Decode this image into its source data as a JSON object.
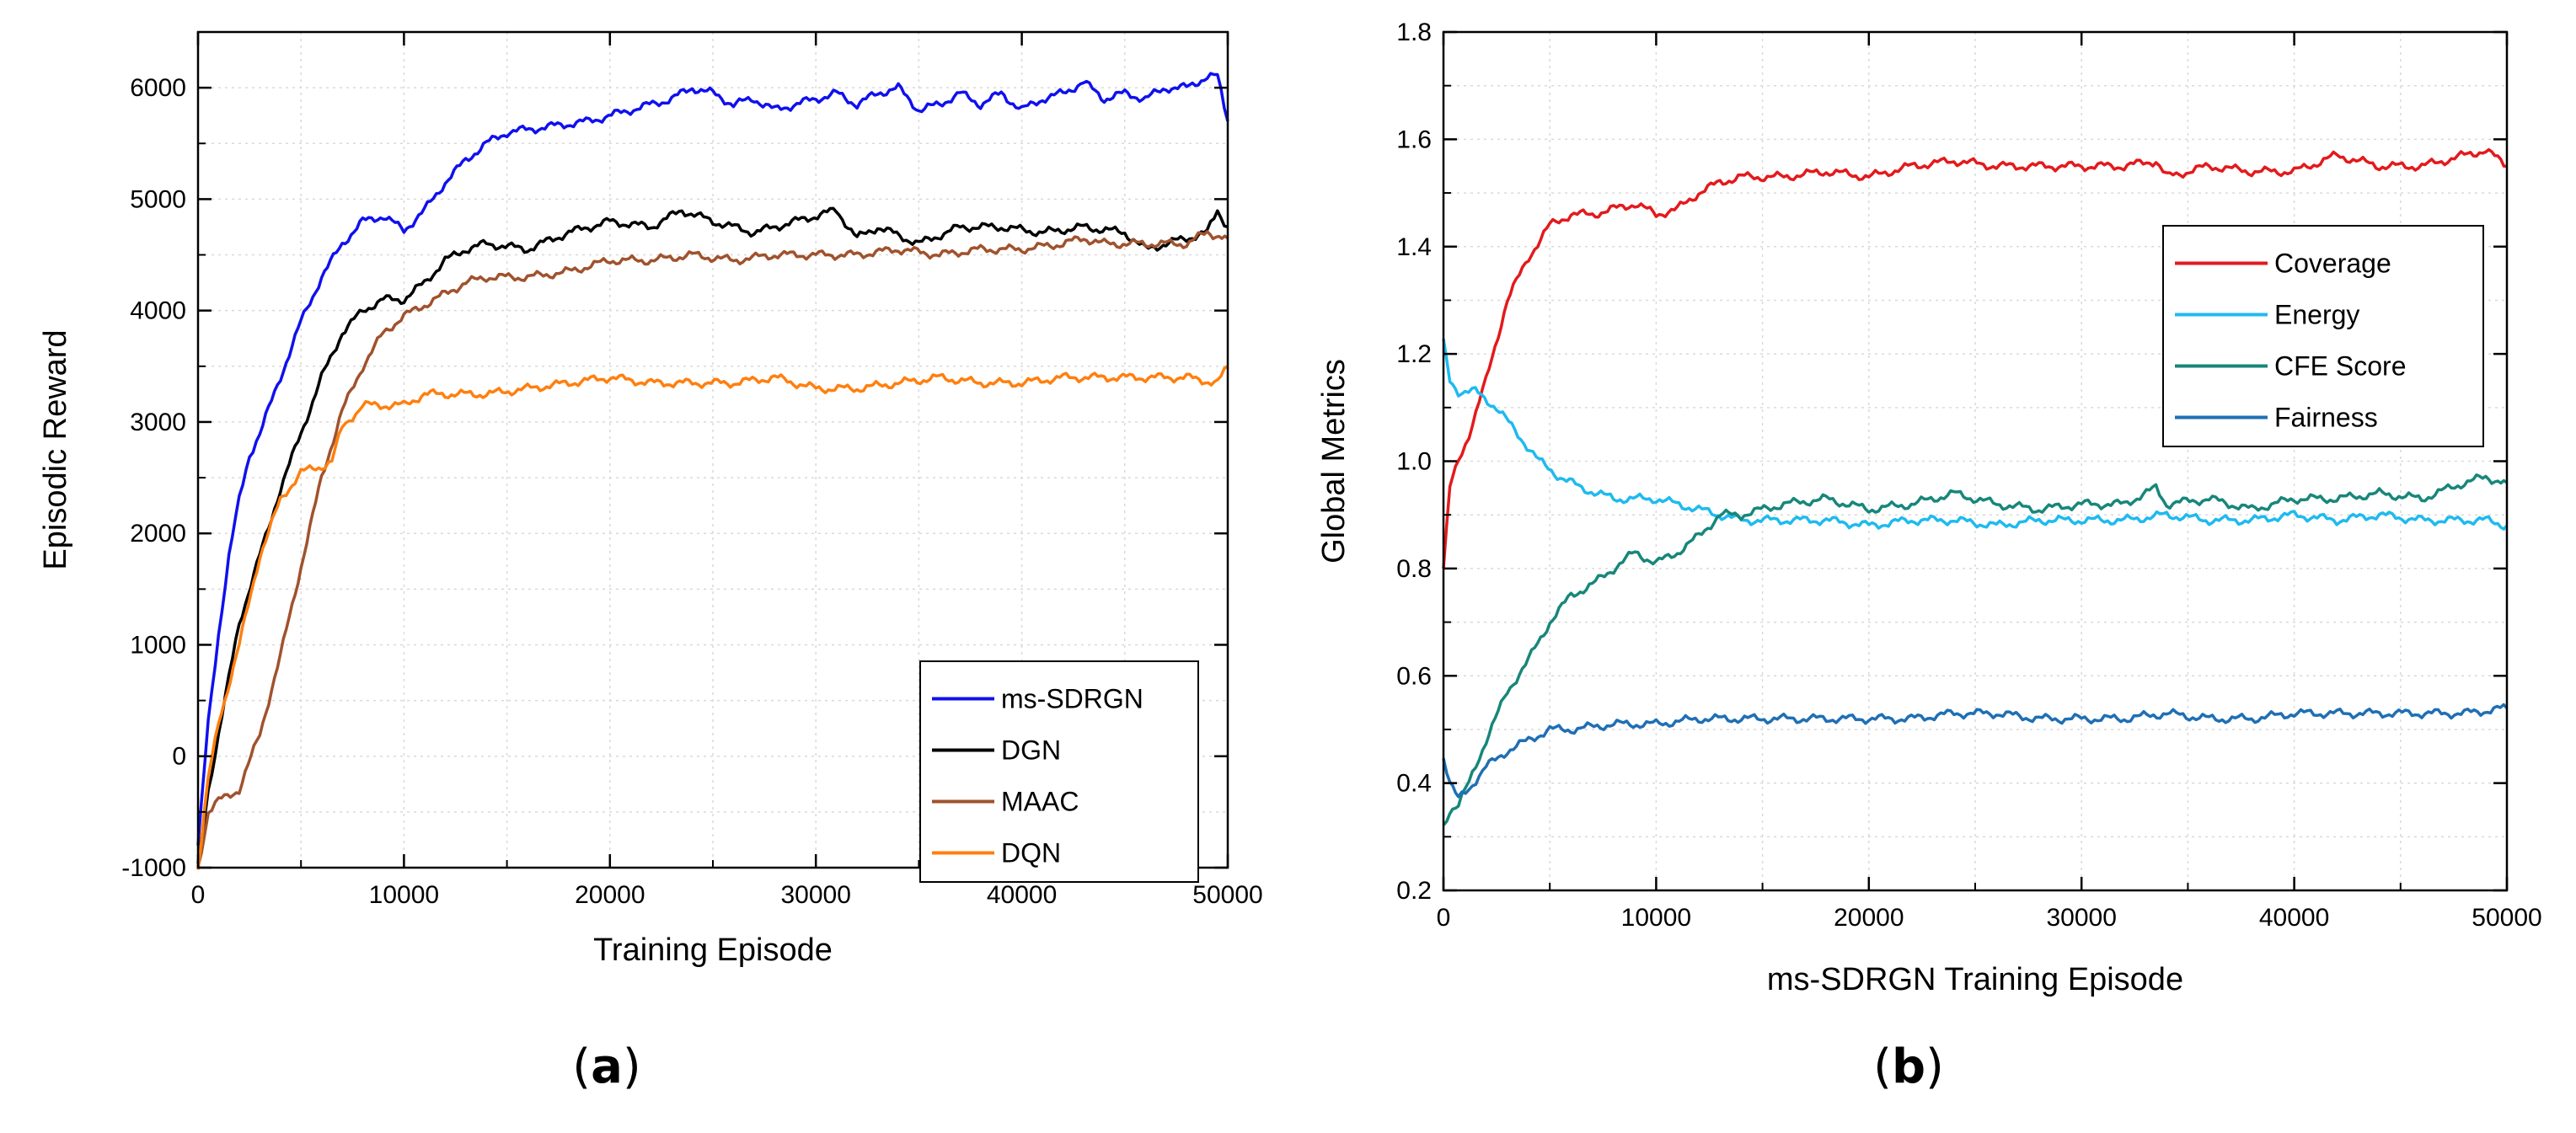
{
  "chart_data": [
    {
      "id": "a",
      "type": "line",
      "panel_label_open": "(",
      "panel_label_letter": "a",
      "panel_label_close": ")",
      "xlabel": "Training Episode",
      "ylabel": "Episodic Reward",
      "xlim": [
        0,
        50000
      ],
      "ylim": [
        -1000,
        6500
      ],
      "xticks": [
        0,
        10000,
        20000,
        30000,
        40000,
        50000
      ],
      "yticks": [
        -1000,
        0,
        1000,
        2000,
        3000,
        4000,
        5000,
        6000
      ],
      "grid": true,
      "legend_position": "bottom-right",
      "series": [
        {
          "name": "ms-SDRGN",
          "color": "#1010ee",
          "x": [
            0,
            500,
            1000,
            1500,
            2000,
            2500,
            3000,
            4000,
            5000,
            6000,
            7000,
            8000,
            9000,
            10000,
            11000,
            12000,
            13000,
            14000,
            15000,
            17000,
            19000,
            21000,
            23000,
            24000,
            25000,
            26000,
            27000,
            28000,
            30000,
            31000,
            32000,
            33000,
            34000,
            35000,
            36000,
            37000,
            38000,
            39000,
            40000,
            41000,
            42000,
            43000,
            44000,
            45000,
            46000,
            47000,
            48000,
            49000,
            49500,
            50000
          ],
          "y": [
            -800,
            300,
            1100,
            1800,
            2300,
            2700,
            2900,
            3400,
            3900,
            4300,
            4600,
            4800,
            4850,
            4720,
            4900,
            5150,
            5350,
            5500,
            5600,
            5650,
            5700,
            5800,
            5900,
            6000,
            5950,
            5850,
            5900,
            5800,
            5900,
            5950,
            5850,
            5950,
            6000,
            5800,
            5850,
            5950,
            5850,
            5950,
            5800,
            5900,
            5950,
            6050,
            5900,
            5950,
            5900,
            6000,
            6000,
            6100,
            6100,
            5700
          ]
        },
        {
          "name": "DGN",
          "color": "#000000",
          "x": [
            0,
            500,
            1000,
            1500,
            2000,
            3000,
            4000,
            5000,
            6000,
            7000,
            8000,
            9000,
            10000,
            11000,
            12000,
            13000,
            14000,
            16000,
            18000,
            20000,
            22000,
            23500,
            25000,
            27000,
            29000,
            31000,
            32000,
            33000,
            35000,
            37000,
            39000,
            41000,
            43000,
            45000,
            46000,
            47000,
            48000,
            49000,
            49500,
            50000
          ],
          "y": [
            -1000,
            -300,
            200,
            700,
            1200,
            1800,
            2400,
            2900,
            3400,
            3800,
            4000,
            4100,
            4100,
            4250,
            4450,
            4550,
            4600,
            4550,
            4700,
            4800,
            4750,
            4900,
            4800,
            4700,
            4800,
            4900,
            4650,
            4750,
            4600,
            4750,
            4750,
            4700,
            4750,
            4700,
            4550,
            4600,
            4650,
            4700,
            4900,
            4750
          ]
        },
        {
          "name": "MAAC",
          "color": "#a0522d",
          "x": [
            0,
            500,
            1000,
            2000,
            3000,
            4000,
            5000,
            6000,
            7000,
            8000,
            9000,
            10000,
            11000,
            12000,
            13000,
            14000,
            16000,
            18000,
            20000,
            22000,
            24000,
            26000,
            28000,
            30000,
            32000,
            34000,
            36000,
            38000,
            40000,
            42000,
            43000,
            44000,
            46000,
            48000,
            49000,
            50000
          ],
          "y": [
            -1000,
            -500,
            -400,
            -300,
            200,
            900,
            1700,
            2500,
            3100,
            3500,
            3800,
            3950,
            4050,
            4150,
            4250,
            4300,
            4300,
            4350,
            4450,
            4450,
            4500,
            4450,
            4500,
            4500,
            4500,
            4550,
            4500,
            4550,
            4550,
            4600,
            4650,
            4600,
            4600,
            4600,
            4700,
            4650
          ]
        },
        {
          "name": "DQN",
          "color": "#ff7f0e",
          "x": [
            0,
            500,
            1000,
            2000,
            3000,
            4000,
            5000,
            6000,
            6500,
            7000,
            7500,
            8000,
            9000,
            10000,
            11000,
            12000,
            14000,
            16000,
            18000,
            20000,
            22000,
            24000,
            26000,
            28000,
            30000,
            32000,
            34000,
            36000,
            38000,
            40000,
            42000,
            44000,
            46000,
            48000,
            49500,
            50000
          ],
          "y": [
            -1000,
            -200,
            300,
            1000,
            1800,
            2300,
            2550,
            2600,
            2650,
            2950,
            3050,
            3150,
            3150,
            3150,
            3250,
            3250,
            3250,
            3300,
            3350,
            3400,
            3350,
            3350,
            3350,
            3400,
            3300,
            3300,
            3350,
            3400,
            3350,
            3350,
            3400,
            3400,
            3400,
            3400,
            3350,
            3500
          ]
        }
      ]
    },
    {
      "id": "b",
      "type": "line",
      "panel_label_open": "(",
      "panel_label_letter": "b",
      "panel_label_close": ")",
      "xlabel": "ms-SDRGN Training Episode",
      "ylabel": "Global Metrics",
      "xlim": [
        0,
        50000
      ],
      "ylim": [
        0.2,
        1.8
      ],
      "xticks": [
        0,
        10000,
        20000,
        30000,
        40000,
        50000
      ],
      "yticks": [
        0.2,
        0.4,
        0.6,
        0.8,
        1.0,
        1.2,
        1.4,
        1.6,
        1.8
      ],
      "ytick_labels": [
        "0.2",
        "0.4",
        "0.6",
        "0.8",
        "1.0",
        "1.2",
        "1.4",
        "1.6",
        "1.8"
      ],
      "grid": true,
      "legend_position": "top-right",
      "series": [
        {
          "name": "Coverage",
          "color": "#e31a1c",
          "x": [
            0,
            300,
            700,
            1200,
            2000,
            3000,
            4000,
            5000,
            6000,
            7000,
            8000,
            9000,
            10000,
            11000,
            12000,
            13000,
            14000,
            16000,
            18000,
            20000,
            22000,
            24000,
            26000,
            28000,
            30000,
            32000,
            33500,
            34000,
            36000,
            38000,
            40000,
            42000,
            44000,
            46000,
            48000,
            49000,
            50000
          ],
          "y": [
            0.8,
            0.95,
            1.0,
            1.05,
            1.15,
            1.3,
            1.38,
            1.44,
            1.46,
            1.46,
            1.47,
            1.48,
            1.46,
            1.47,
            1.5,
            1.52,
            1.53,
            1.53,
            1.54,
            1.53,
            1.55,
            1.56,
            1.55,
            1.55,
            1.55,
            1.55,
            1.56,
            1.53,
            1.55,
            1.54,
            1.54,
            1.57,
            1.55,
            1.55,
            1.57,
            1.58,
            1.55
          ]
        },
        {
          "name": "Energy",
          "color": "#1fbaee",
          "x": [
            0,
            300,
            700,
            1500,
            2500,
            3500,
            4500,
            5500,
            6500,
            8000,
            10000,
            12000,
            14000,
            16000,
            18000,
            20000,
            22000,
            24000,
            26000,
            28000,
            30000,
            32000,
            34000,
            36000,
            38000,
            40000,
            42000,
            44000,
            46000,
            48000,
            49000,
            50000
          ],
          "y": [
            1.22,
            1.15,
            1.13,
            1.13,
            1.1,
            1.05,
            1.0,
            0.97,
            0.95,
            0.93,
            0.93,
            0.91,
            0.89,
            0.89,
            0.89,
            0.88,
            0.89,
            0.89,
            0.88,
            0.89,
            0.89,
            0.89,
            0.9,
            0.89,
            0.89,
            0.9,
            0.89,
            0.9,
            0.89,
            0.89,
            0.89,
            0.88
          ]
        },
        {
          "name": "CFE Score",
          "color": "#17877a",
          "x": [
            0,
            300,
            700,
            1200,
            2000,
            3000,
            4000,
            5000,
            6000,
            7000,
            8000,
            9000,
            10000,
            11000,
            12000,
            13000,
            14000,
            16000,
            18000,
            20000,
            22000,
            24000,
            26000,
            28000,
            30000,
            32000,
            33500,
            34000,
            36000,
            38000,
            40000,
            42000,
            44000,
            46000,
            48000,
            49000,
            50000
          ],
          "y": [
            0.32,
            0.35,
            0.36,
            0.4,
            0.48,
            0.57,
            0.63,
            0.7,
            0.75,
            0.77,
            0.8,
            0.83,
            0.81,
            0.83,
            0.86,
            0.9,
            0.9,
            0.92,
            0.93,
            0.91,
            0.92,
            0.94,
            0.92,
            0.91,
            0.92,
            0.92,
            0.95,
            0.92,
            0.93,
            0.91,
            0.93,
            0.93,
            0.94,
            0.93,
            0.96,
            0.97,
            0.96
          ]
        },
        {
          "name": "Fairness",
          "color": "#1f6fb4",
          "x": [
            0,
            300,
            700,
            1200,
            2000,
            3000,
            4000,
            5000,
            6000,
            8000,
            10000,
            12000,
            14000,
            16000,
            18000,
            20000,
            22000,
            24000,
            26000,
            28000,
            30000,
            32000,
            34000,
            36000,
            38000,
            40000,
            42000,
            44000,
            46000,
            48000,
            50000
          ],
          "y": [
            0.45,
            0.4,
            0.37,
            0.39,
            0.43,
            0.46,
            0.48,
            0.5,
            0.5,
            0.51,
            0.51,
            0.52,
            0.52,
            0.52,
            0.52,
            0.52,
            0.52,
            0.53,
            0.53,
            0.52,
            0.52,
            0.52,
            0.53,
            0.52,
            0.52,
            0.53,
            0.53,
            0.53,
            0.53,
            0.53,
            0.54
          ]
        }
      ]
    }
  ]
}
